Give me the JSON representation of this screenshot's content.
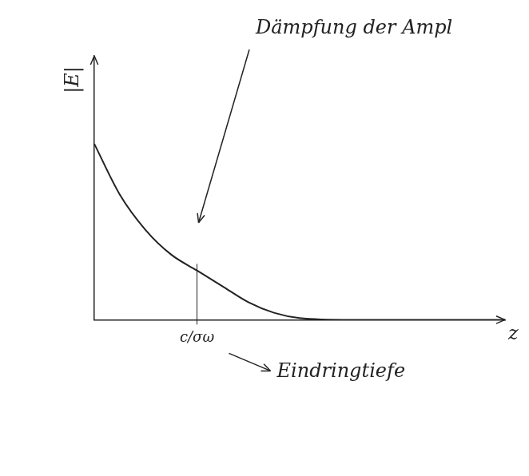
{
  "chart_data": {
    "type": "line",
    "xlabel": "z",
    "ylabel": "|E|",
    "annotations": [
      {
        "text": "Dämpfung der Ampl"
      },
      {
        "text": "Eindringtiefe"
      }
    ],
    "x": [
      0,
      0.25,
      0.5,
      0.75,
      1,
      1.25,
      1.5,
      1.75,
      2,
      2.5,
      3,
      3.5,
      4
    ],
    "values": [
      1.0,
      0.71,
      0.51,
      0.37,
      0.28,
      0.19,
      0.1,
      0.04,
      0.01,
      0,
      0,
      0,
      0
    ],
    "color": "#222222",
    "xlim": [
      0,
      4
    ],
    "ylim": [
      0,
      1.5
    ],
    "xticks": [
      {
        "value": 1,
        "label": "c/σω"
      }
    ],
    "yticks": [],
    "tick_labels": "x",
    "grid": false
  }
}
